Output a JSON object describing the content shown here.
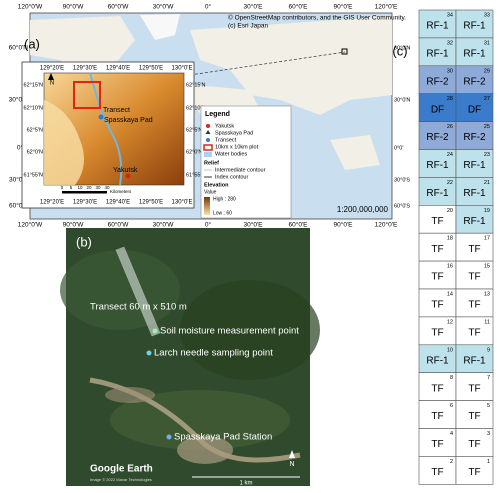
{
  "panel_labels": {
    "a": "(a)",
    "b": "(b)",
    "c": "(c)"
  },
  "map_a": {
    "lon_labels": [
      "120°0'W",
      "90°0'W",
      "60°0'W",
      "30°0'W",
      "0°",
      "30°0'E",
      "60°0'E",
      "90°0'E",
      "120°0'E"
    ],
    "lat_labels": [
      "60°0'N",
      "30°0'N",
      "0°0'",
      "30°0'S",
      "60°0'S"
    ],
    "credits": [
      "© OpenStreetMap contributors, and the GIS User Community.",
      "(c) Esri Japan"
    ],
    "scale": "1:200,000,000",
    "inset": {
      "lon_labels": [
        "129°20'E",
        "129°30'E",
        "129°40'E",
        "129°50'E",
        "130°0'E"
      ],
      "lat_labels": [
        "62°15'N",
        "62°10'N",
        "62°5'N",
        "62°0'N",
        "61°55'N"
      ],
      "places": [
        "Transect",
        "Spasskaya Pad",
        "Yakutsk"
      ],
      "scale_ticks": [
        "0",
        "5",
        "10",
        "20",
        "30",
        "40"
      ],
      "scale_unit": "Kilometers",
      "north": "N"
    },
    "legend": {
      "title": "Legend",
      "items": [
        "Yakutsk",
        "Spasskaya Pad",
        "Transect",
        "10km x 10km plot",
        "Water bodies"
      ],
      "relief_title": "Relief",
      "relief_items": [
        "Intermediate contour",
        "Index contour"
      ],
      "elevation_title": "Elevation",
      "value_title": "Value",
      "high": "High : 280",
      "low": "Low : 60"
    }
  },
  "image_b": {
    "labels": [
      "Transect 60 m x 510 m",
      "Soil moisture measurement point",
      "Larch needle sampling point",
      "Spasskaya Pad Station"
    ],
    "logo": "Google Earth",
    "credit": "Image © 2022 Maxar Technologies",
    "scale": "1 km",
    "north": "N"
  },
  "grid_c": {
    "cells": [
      {
        "label": "RF-1",
        "number": 34,
        "color": "#bde2ec"
      },
      {
        "label": "RF-1",
        "number": 33,
        "color": "#bde2ec"
      },
      {
        "label": "RF-1",
        "number": 32,
        "color": "#bde2ec"
      },
      {
        "label": "RF-1",
        "number": 31,
        "color": "#bde2ec"
      },
      {
        "label": "RF-2",
        "number": 30,
        "color": "#8eaad8"
      },
      {
        "label": "RF-2",
        "number": 29,
        "color": "#8eaad8"
      },
      {
        "label": "DF",
        "number": 28,
        "color": "#3b7bcc"
      },
      {
        "label": "DF",
        "number": 27,
        "color": "#3b7bcc"
      },
      {
        "label": "RF-2",
        "number": 26,
        "color": "#8eaad8"
      },
      {
        "label": "RF-2",
        "number": 25,
        "color": "#8eaad8"
      },
      {
        "label": "RF-1",
        "number": 24,
        "color": "#bde2ec"
      },
      {
        "label": "RF-1",
        "number": 23,
        "color": "#bde2ec"
      },
      {
        "label": "RF-1",
        "number": 22,
        "color": "#bde2ec"
      },
      {
        "label": "RF-1",
        "number": 21,
        "color": "#bde2ec"
      },
      {
        "label": "TF",
        "number": 20,
        "color": "#ffffff"
      },
      {
        "label": "RF-1",
        "number": 19,
        "color": "#bde2ec"
      },
      {
        "label": "TF",
        "number": 18,
        "color": "#ffffff"
      },
      {
        "label": "TF",
        "number": 17,
        "color": "#ffffff"
      },
      {
        "label": "TF",
        "number": 16,
        "color": "#ffffff"
      },
      {
        "label": "TF",
        "number": 15,
        "color": "#ffffff"
      },
      {
        "label": "TF",
        "number": 14,
        "color": "#ffffff"
      },
      {
        "label": "TF",
        "number": 13,
        "color": "#ffffff"
      },
      {
        "label": "TF",
        "number": 12,
        "color": "#ffffff"
      },
      {
        "label": "TF",
        "number": 11,
        "color": "#ffffff"
      },
      {
        "label": "RF-1",
        "number": 10,
        "color": "#bde2ec"
      },
      {
        "label": "RF-1",
        "number": 9,
        "color": "#bde2ec"
      },
      {
        "label": "TF",
        "number": 8,
        "color": "#ffffff"
      },
      {
        "label": "TF",
        "number": 7,
        "color": "#ffffff"
      },
      {
        "label": "TF",
        "number": 6,
        "color": "#ffffff"
      },
      {
        "label": "TF",
        "number": 5,
        "color": "#ffffff"
      },
      {
        "label": "TF",
        "number": 4,
        "color": "#ffffff"
      },
      {
        "label": "TF",
        "number": 3,
        "color": "#ffffff"
      },
      {
        "label": "TF",
        "number": 2,
        "color": "#ffffff"
      },
      {
        "label": "TF",
        "number": 1,
        "color": "#ffffff"
      }
    ]
  }
}
